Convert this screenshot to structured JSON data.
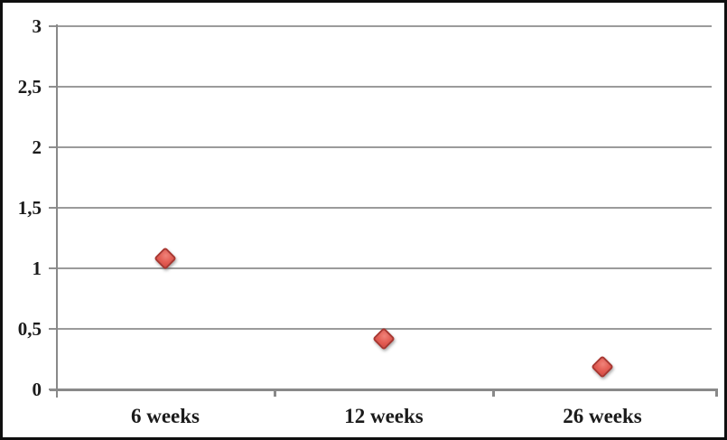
{
  "chart_data": {
    "type": "scatter",
    "title": "",
    "xlabel": "",
    "ylabel": "",
    "categories": [
      "6 weeks",
      "12 weeks",
      "26 weeks"
    ],
    "values": [
      1.08,
      0.42,
      0.19
    ],
    "ylim": [
      0,
      3
    ],
    "ytick_step": 0.5,
    "ytick_labels": [
      "0",
      "0,5",
      "1",
      "1,5",
      "2",
      "2,5",
      "3"
    ],
    "decimal_separator": ",",
    "grid": true,
    "legend_position": "none",
    "marker": {
      "shape": "diamond",
      "fill": "#e35e55",
      "stroke": "#a93630"
    }
  },
  "colors": {
    "background": "#ffffff",
    "frame": "#0f0f0f",
    "gridline": "#9b9b9b",
    "axis": "#898989",
    "label_text": "#1b1b1b"
  }
}
